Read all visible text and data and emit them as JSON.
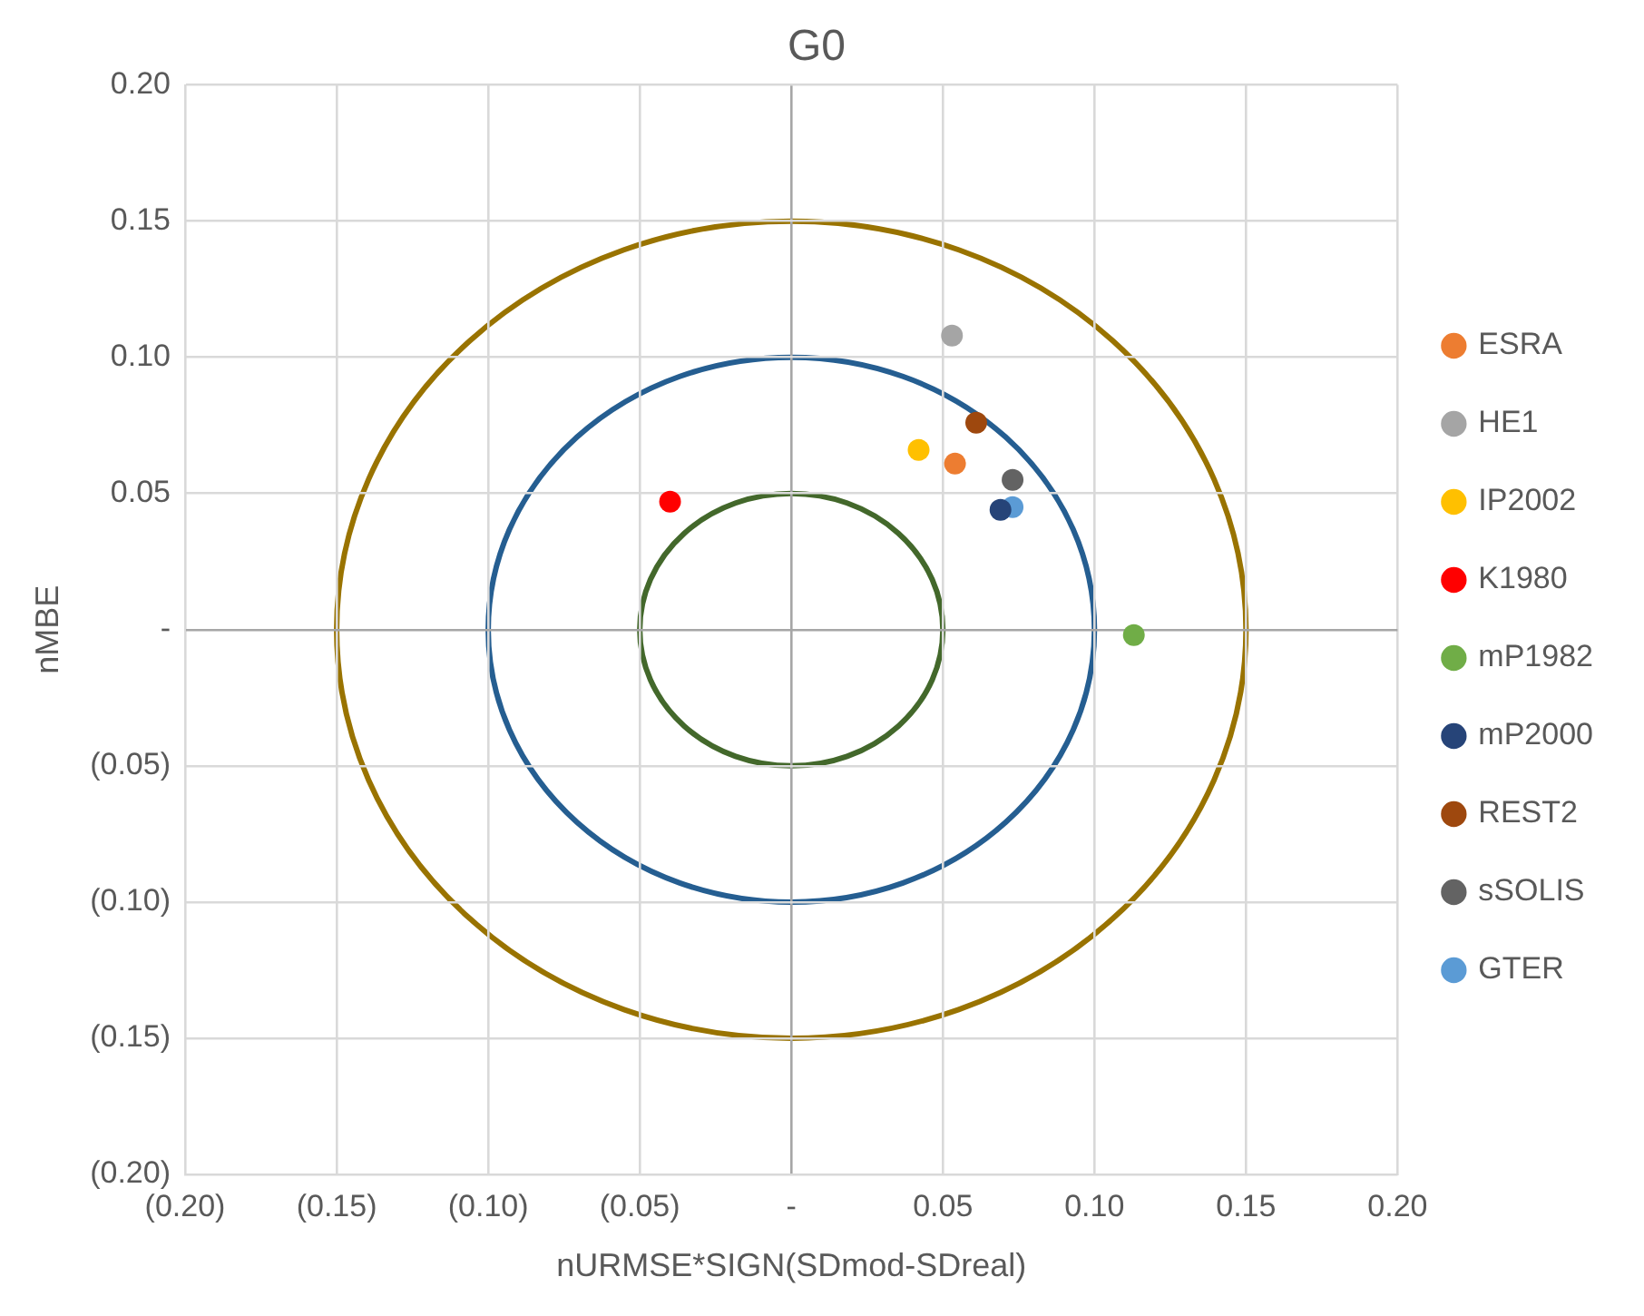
{
  "chart_data": {
    "type": "scatter",
    "title": "G0",
    "xlabel": "nURMSE*SIGN(SDmod-SDreal)",
    "ylabel": "nMBE",
    "marker": "circle",
    "grid": true,
    "legend": "right",
    "xlim": [
      -0.2,
      0.2
    ],
    "ylim": [
      -0.2,
      0.2
    ],
    "xticks": [
      {
        "value": -0.2,
        "label": "(0.20)"
      },
      {
        "value": -0.15,
        "label": "(0.15)"
      },
      {
        "value": -0.1,
        "label": "(0.10)"
      },
      {
        "value": -0.05,
        "label": "(0.05)"
      },
      {
        "value": 0,
        "label": "-"
      },
      {
        "value": 0.05,
        "label": "0.05"
      },
      {
        "value": 0.1,
        "label": "0.10"
      },
      {
        "value": 0.15,
        "label": "0.15"
      },
      {
        "value": 0.2,
        "label": "0.20"
      }
    ],
    "yticks": [
      {
        "value": -0.2,
        "label": "(0.20)"
      },
      {
        "value": -0.15,
        "label": "(0.15)"
      },
      {
        "value": -0.1,
        "label": "(0.10)"
      },
      {
        "value": -0.05,
        "label": "(0.05)"
      },
      {
        "value": 0,
        "label": "-"
      },
      {
        "value": 0.05,
        "label": "0.05"
      },
      {
        "value": 0.1,
        "label": "0.10"
      },
      {
        "value": 0.15,
        "label": "0.15"
      },
      {
        "value": 0.2,
        "label": "0.20"
      }
    ],
    "series": [
      {
        "name": "ESRA",
        "color": "#ed7d31",
        "x": [
          0.054
        ],
        "values": [
          0.061
        ]
      },
      {
        "name": "HE1",
        "color": "#a5a5a5",
        "x": [
          0.053
        ],
        "values": [
          0.108
        ]
      },
      {
        "name": "IP2002",
        "color": "#ffc000",
        "x": [
          0.042
        ],
        "values": [
          0.066
        ]
      },
      {
        "name": "K1980",
        "color": "#ff0000",
        "x": [
          -0.04
        ],
        "values": [
          0.047
        ]
      },
      {
        "name": "mP1982",
        "color": "#70ad47",
        "x": [
          0.113
        ],
        "values": [
          -0.002
        ]
      },
      {
        "name": "mP2000",
        "color": "#264478",
        "x": [
          0.069
        ],
        "values": [
          0.044
        ]
      },
      {
        "name": "REST2",
        "color": "#9e480e",
        "x": [
          0.061
        ],
        "values": [
          0.076
        ]
      },
      {
        "name": "sSOLIS",
        "color": "#636363",
        "x": [
          0.073
        ],
        "values": [
          0.055
        ]
      },
      {
        "name": "GTER",
        "color": "#5b9bd5",
        "x": [
          0.073
        ],
        "values": [
          0.045
        ]
      }
    ]
  }
}
